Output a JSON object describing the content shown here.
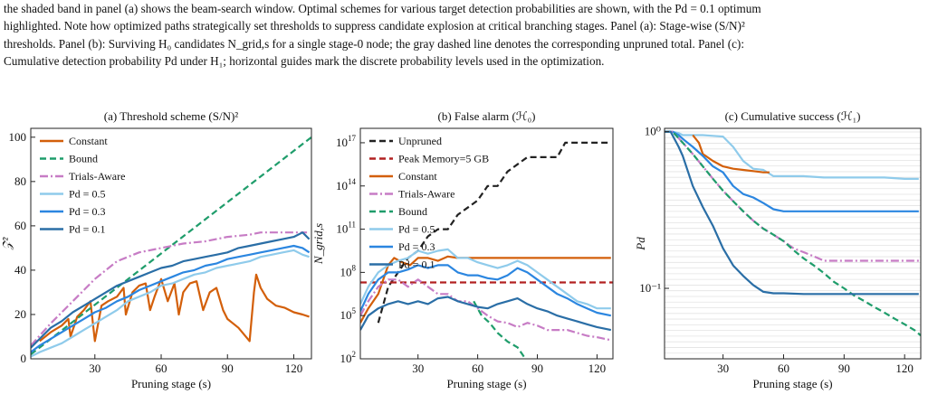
{
  "caption": {
    "line1": "the shaded band in panel (a) shows the beam-search window. Optimal schemes for various target detection probabilities are shown, with the Pd = 0.1 optimum",
    "line2": "highlighted. Note how optimized paths strategically set thresholds to suppress candidate explosion at critical branching stages. Panel (a): Stage-wise (S/N)²",
    "line3": "thresholds. Panel (b): Surviving H₀ candidates N_grid,s for a single stage-0 node; the gray dashed line denotes the corresponding unpruned total. Panel (c):",
    "line4": "Cumulative detection probability Pd under H₁; horizontal guides mark the discrete probability levels used in the optimization."
  },
  "colors": {
    "constant": "#d35f0a",
    "bound": "#1f9d6b",
    "trials_aware": "#c77cc5",
    "pd05": "#8fcbeb",
    "pd03": "#2b86e0",
    "pd01": "#2a6ea6",
    "unpruned": "#222222",
    "peak_memory": "#b22222"
  },
  "chart_data": [
    {
      "type": "line",
      "title": "(a) Threshold scheme (S/N)²",
      "xlabel": "Pruning stage (s)",
      "ylabel": "𝒵²",
      "xlim": [
        1,
        128
      ],
      "ylim": [
        0,
        104
      ],
      "xticks": [
        30,
        60,
        90,
        120
      ],
      "yticks": [
        0,
        20,
        40,
        60,
        80,
        100
      ],
      "grid": false,
      "legend_position": "top-left",
      "series": [
        {
          "name": "Constant",
          "key": "constant",
          "style": "solid",
          "x": [
            5,
            10,
            15,
            18,
            19,
            22,
            25,
            28,
            30,
            33,
            36,
            40,
            43,
            44,
            47,
            50,
            53,
            55,
            57,
            60,
            63,
            66,
            68,
            70,
            73,
            76,
            79,
            82,
            85,
            88,
            90,
            95,
            100,
            102,
            103,
            105,
            108,
            112,
            116,
            120,
            124,
            127
          ],
          "y": [
            8,
            12,
            15,
            18,
            10,
            19,
            22,
            26,
            8,
            24,
            26,
            28,
            32,
            20,
            30,
            33,
            34,
            22,
            28,
            36,
            26,
            34,
            20,
            30,
            34,
            35,
            22,
            30,
            32,
            22,
            18,
            14,
            8,
            30,
            38,
            32,
            27,
            24,
            23,
            21,
            20,
            19
          ]
        },
        {
          "name": "Bound",
          "key": "bound",
          "style": "dashed",
          "x": [
            1,
            128
          ],
          "y": [
            2,
            100
          ]
        },
        {
          "name": "Trials-Aware",
          "key": "trials_aware",
          "style": "dashdot",
          "x": [
            1,
            10,
            20,
            30,
            40,
            45,
            50,
            60,
            70,
            80,
            90,
            100,
            105,
            110,
            120,
            126
          ],
          "y": [
            6,
            16,
            26,
            36,
            44,
            46,
            48,
            50,
            52,
            53,
            55,
            56,
            57,
            57,
            57,
            57
          ]
        },
        {
          "name": "Pd = 0.5",
          "key": "pd05",
          "style": "solid",
          "x": [
            1,
            5,
            10,
            15,
            20,
            25,
            30,
            35,
            40,
            45,
            50,
            55,
            60,
            65,
            70,
            75,
            80,
            85,
            90,
            95,
            100,
            105,
            110,
            115,
            120,
            124,
            127
          ],
          "y": [
            1,
            3,
            5,
            7,
            10,
            13,
            16,
            19,
            22,
            26,
            28,
            30,
            33,
            34,
            36,
            38,
            39,
            41,
            42,
            43,
            44,
            46,
            47,
            48,
            49,
            47,
            46
          ]
        },
        {
          "name": "Pd = 0.3",
          "key": "pd03",
          "style": "solid",
          "x": [
            1,
            5,
            10,
            15,
            20,
            25,
            30,
            35,
            40,
            45,
            50,
            55,
            60,
            65,
            70,
            75,
            80,
            85,
            90,
            95,
            100,
            105,
            110,
            115,
            120,
            124,
            127
          ],
          "y": [
            3,
            6,
            9,
            12,
            15,
            18,
            21,
            23,
            26,
            28,
            31,
            33,
            35,
            37,
            39,
            40,
            42,
            43,
            45,
            46,
            47,
            48,
            49,
            50,
            51,
            50,
            48
          ]
        },
        {
          "name": "Pd = 0.1",
          "key": "pd01",
          "style": "solid",
          "x": [
            1,
            5,
            10,
            15,
            20,
            25,
            30,
            35,
            40,
            45,
            50,
            55,
            60,
            65,
            70,
            75,
            80,
            85,
            90,
            95,
            100,
            105,
            110,
            115,
            120,
            124,
            127
          ],
          "y": [
            5,
            9,
            14,
            17,
            21,
            24,
            27,
            30,
            33,
            35,
            37,
            39,
            41,
            42,
            44,
            45,
            46,
            47,
            48,
            50,
            51,
            52,
            53,
            54,
            55,
            57,
            54
          ]
        }
      ]
    },
    {
      "type": "line",
      "title": "(b) False alarm (ℋ₀)",
      "xlabel": "Pruning stage (s)",
      "ylabel": "N_grid,s",
      "xlim": [
        1,
        128
      ],
      "yscale": "log",
      "ylim_log10": [
        2,
        18
      ],
      "xticks": [
        30,
        60,
        90,
        120
      ],
      "yticks_log10": [
        2,
        5,
        8,
        11,
        14,
        17
      ],
      "grid": false,
      "legend_position": "top-left",
      "series": [
        {
          "name": "Unpruned",
          "key": "unpruned",
          "style": "dashed",
          "x": [
            10,
            15,
            20,
            25,
            30,
            35,
            40,
            45,
            50,
            55,
            60,
            65,
            70,
            75,
            80,
            85,
            90,
            95,
            100,
            104,
            110,
            120,
            127
          ],
          "y_log10": [
            4.5,
            7,
            8,
            9,
            9.5,
            10.5,
            11,
            11,
            12,
            12.5,
            13,
            14,
            14,
            15,
            15.5,
            16,
            16,
            16,
            16,
            17,
            17,
            17,
            17
          ]
        },
        {
          "name": "Peak Memory=5 GB",
          "key": "peak_memory",
          "style": "dashed",
          "x": [
            1,
            128
          ],
          "y_log10": [
            7.3,
            7.3
          ]
        },
        {
          "name": "Constant",
          "key": "constant",
          "style": "solid",
          "x": [
            1,
            5,
            10,
            15,
            18,
            22,
            26,
            30,
            35,
            40,
            45,
            50,
            60,
            70,
            80,
            90,
            100,
            110,
            120,
            127
          ],
          "y_log10": [
            4.5,
            5.5,
            6.5,
            8.5,
            9,
            8.7,
            8.5,
            9,
            9,
            8.8,
            9.1,
            9,
            9,
            9,
            9,
            9,
            9,
            9,
            9,
            9
          ]
        },
        {
          "name": "Trials-Aware",
          "key": "trials_aware",
          "style": "dashdot",
          "x": [
            1,
            5,
            10,
            15,
            20,
            25,
            30,
            35,
            40,
            45,
            50,
            55,
            60,
            65,
            70,
            75,
            80,
            85,
            90,
            95,
            100,
            105,
            110,
            115,
            120,
            127
          ],
          "y_log10": [
            5,
            6,
            7,
            7.5,
            7.5,
            7,
            7.5,
            7,
            6.5,
            6.5,
            6,
            6,
            5.5,
            5,
            4.6,
            4.5,
            4.2,
            4.5,
            4.3,
            4,
            4,
            4,
            3.8,
            3.6,
            3.5,
            3.3
          ]
        },
        {
          "name": "Bound",
          "key": "bound",
          "style": "dashed",
          "x": [
            58,
            62,
            66,
            70,
            75,
            80,
            83,
            85
          ],
          "y_log10": [
            6,
            5,
            4.5,
            3.8,
            3.2,
            2.8,
            2.2,
            1.8
          ]
        },
        {
          "name": "Pd = 0.5",
          "key": "pd05",
          "style": "solid",
          "x": [
            1,
            5,
            10,
            15,
            20,
            25,
            30,
            35,
            40,
            45,
            50,
            55,
            60,
            65,
            70,
            75,
            80,
            85,
            90,
            95,
            100,
            105,
            110,
            115,
            120,
            127
          ],
          "y_log10": [
            5.8,
            7,
            8,
            8.5,
            8.8,
            9,
            9.5,
            9.3,
            9.5,
            9.6,
            9,
            9,
            8.7,
            8.5,
            8.3,
            8.5,
            8.8,
            8.5,
            8,
            7.5,
            7,
            6.5,
            6,
            5.8,
            5.5,
            5.5
          ]
        },
        {
          "name": "Pd = 0.3",
          "key": "pd03",
          "style": "solid",
          "x": [
            1,
            5,
            10,
            15,
            20,
            25,
            30,
            35,
            40,
            45,
            50,
            55,
            60,
            65,
            70,
            75,
            80,
            85,
            90,
            95,
            100,
            105,
            110,
            115,
            120,
            127
          ],
          "y_log10": [
            5.3,
            6.5,
            7.5,
            8,
            8,
            8.2,
            8.5,
            8.3,
            8.5,
            8.5,
            8,
            7.8,
            7.8,
            7.6,
            7.5,
            7.8,
            8.3,
            8,
            7.5,
            7,
            6.5,
            6.2,
            5.8,
            5.5,
            5.2,
            5
          ]
        },
        {
          "name": "Pd = 0.1",
          "key": "pd01",
          "style": "solid",
          "x": [
            1,
            5,
            10,
            15,
            20,
            25,
            30,
            35,
            40,
            45,
            50,
            55,
            60,
            65,
            70,
            75,
            80,
            85,
            90,
            95,
            100,
            105,
            110,
            115,
            120,
            127
          ],
          "y_log10": [
            4,
            5,
            5.5,
            5.8,
            6,
            5.8,
            6,
            5.8,
            6.2,
            6.3,
            6,
            5.8,
            5.6,
            5.5,
            5.8,
            6,
            6.2,
            5.8,
            5.5,
            5.3,
            5,
            4.8,
            4.6,
            4.4,
            4.2,
            4
          ]
        }
      ]
    },
    {
      "type": "line",
      "title": "(c) Cumulative success (ℋ₁)",
      "xlabel": "Pruning stage (s)",
      "ylabel": "Pd",
      "xlim": [
        1,
        128
      ],
      "yscale": "log",
      "ylim": [
        0.0355,
        1.05
      ],
      "xticks": [
        30,
        60,
        90,
        120
      ],
      "ytick_labels": [
        "10⁰",
        "10⁻¹"
      ],
      "ytick_values": [
        1,
        0.1
      ],
      "grid": "horizontal guides",
      "series": [
        {
          "name": "Pd = 0.5",
          "key": "pd05",
          "style": "solid",
          "x": [
            1,
            5,
            8,
            10,
            15,
            20,
            25,
            30,
            35,
            40,
            45,
            50,
            55,
            60,
            70,
            80,
            90,
            100,
            110,
            120,
            127
          ],
          "y": [
            1,
            1,
            0.98,
            0.95,
            0.95,
            0.95,
            0.94,
            0.93,
            0.8,
            0.65,
            0.58,
            0.57,
            0.52,
            0.52,
            0.52,
            0.51,
            0.51,
            0.51,
            0.51,
            0.5,
            0.5
          ]
        },
        {
          "name": "Constant",
          "key": "constant",
          "style": "solid",
          "x": [
            15,
            18,
            20,
            25,
            30,
            35,
            40,
            45,
            50,
            53
          ],
          "y": [
            0.95,
            0.85,
            0.72,
            0.65,
            0.6,
            0.58,
            0.57,
            0.56,
            0.55,
            0.55
          ]
        },
        {
          "name": "Pd = 0.3",
          "key": "pd03",
          "style": "solid",
          "x": [
            1,
            5,
            8,
            10,
            15,
            20,
            25,
            30,
            35,
            40,
            45,
            50,
            55,
            60,
            70,
            80,
            90,
            100,
            110,
            120,
            127
          ],
          "y": [
            1,
            1,
            0.95,
            0.9,
            0.8,
            0.7,
            0.6,
            0.55,
            0.45,
            0.4,
            0.38,
            0.35,
            0.32,
            0.31,
            0.31,
            0.31,
            0.31,
            0.31,
            0.31,
            0.31,
            0.31
          ]
        },
        {
          "name": "Trials-Aware",
          "key": "trials_aware",
          "style": "dashdot",
          "x": [
            1,
            5,
            10,
            15,
            20,
            25,
            30,
            35,
            40,
            45,
            50,
            55,
            60,
            65,
            70,
            75,
            80,
            85,
            90,
            100,
            110,
            120,
            127
          ],
          "y": [
            1,
            1,
            0.85,
            0.72,
            0.6,
            0.5,
            0.42,
            0.36,
            0.31,
            0.27,
            0.24,
            0.22,
            0.2,
            0.18,
            0.17,
            0.16,
            0.15,
            0.15,
            0.15,
            0.15,
            0.15,
            0.15,
            0.15
          ]
        },
        {
          "name": "Bound",
          "key": "bound",
          "style": "dashed",
          "x": [
            1,
            5,
            10,
            15,
            20,
            25,
            30,
            35,
            40,
            45,
            50,
            55,
            60,
            65,
            70,
            75,
            80,
            85,
            90,
            95,
            100,
            105,
            110,
            115,
            120,
            125,
            128
          ],
          "y": [
            1,
            1,
            0.85,
            0.72,
            0.6,
            0.5,
            0.42,
            0.36,
            0.31,
            0.27,
            0.24,
            0.22,
            0.2,
            0.175,
            0.155,
            0.14,
            0.125,
            0.11,
            0.1,
            0.09,
            0.083,
            0.076,
            0.07,
            0.064,
            0.059,
            0.054,
            0.05
          ]
        },
        {
          "name": "Pd = 0.1",
          "key": "pd01",
          "style": "solid",
          "x": [
            1,
            4,
            8,
            10,
            15,
            20,
            25,
            30,
            35,
            40,
            45,
            50,
            55,
            60,
            70,
            80,
            90,
            100,
            110,
            120,
            127
          ],
          "y": [
            1,
            1,
            0.8,
            0.7,
            0.45,
            0.33,
            0.25,
            0.18,
            0.14,
            0.12,
            0.105,
            0.095,
            0.093,
            0.093,
            0.092,
            0.092,
            0.092,
            0.092,
            0.092,
            0.092,
            0.092
          ]
        }
      ]
    }
  ]
}
